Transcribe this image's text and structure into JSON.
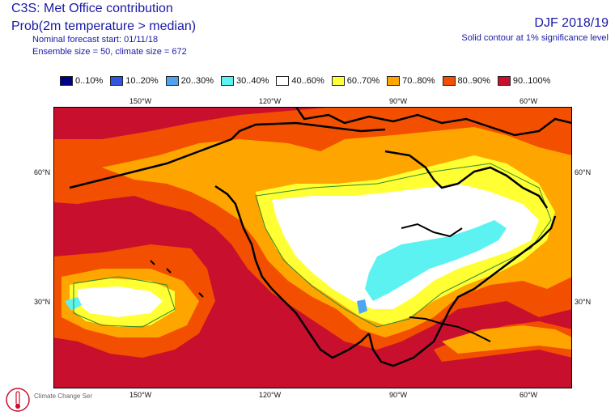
{
  "header": {
    "title": "C3S: Met Office contribution",
    "subtitle": "Prob(2m temperature > median)",
    "forecast_start": "Nominal forecast start: 01/11/18",
    "ensemble": "Ensemble size = 50, climate size = 672",
    "season": "DJF 2018/19",
    "significance": "Solid contour at 1% significance level"
  },
  "legend": [
    {
      "label": "0..10%",
      "color": "#00008b"
    },
    {
      "label": "10..20%",
      "color": "#2f56e0"
    },
    {
      "label": "20..30%",
      "color": "#4ea5ef"
    },
    {
      "label": "30..40%",
      "color": "#5df2f2"
    },
    {
      "label": "40..60%",
      "color": "#ffffff"
    },
    {
      "label": "60..70%",
      "color": "#ffff33"
    },
    {
      "label": "70..80%",
      "color": "#ffa500"
    },
    {
      "label": "80..90%",
      "color": "#f25000"
    },
    {
      "label": "90..100%",
      "color": "#c8102e"
    }
  ],
  "axes": {
    "x_ticks": [
      "150°W",
      "120°W",
      "90°W",
      "60°W"
    ],
    "y_ticks": [
      "60°N",
      "30°N"
    ]
  },
  "logo": {
    "icon": "climate-change-service-logo",
    "text": "Climate Change Service"
  }
}
